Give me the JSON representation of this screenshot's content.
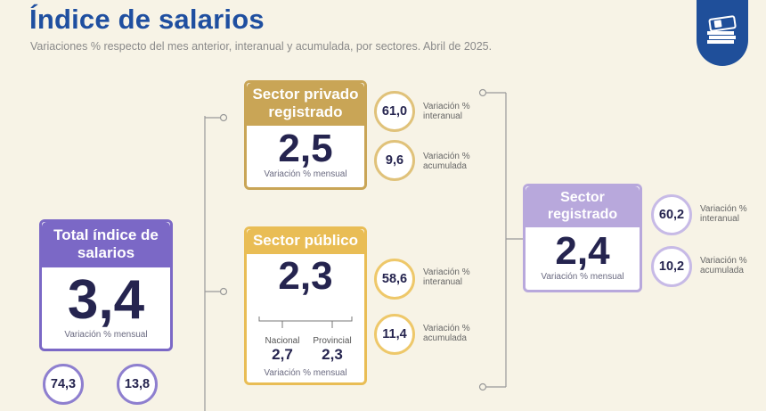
{
  "header": {
    "title": "Índice de salarios",
    "subtitle": "Variaciones % respecto del mes anterior, interanual y acumulada, por sectores. Abril de 2025."
  },
  "colors": {
    "title": "#1f4fa0",
    "total": "#7b68c6",
    "privado": "#c9a556",
    "publico": "#e9bd55",
    "registrado": "#b8a8dc",
    "badge": "#1f4f9a"
  },
  "badge_icon": "money-icon",
  "total": {
    "title": "Total índice de salarios",
    "value": "3,4",
    "caption": "Variación % mensual",
    "interanual": "74,3",
    "acumulada": "13,8"
  },
  "privado": {
    "title": "Sector privado registrado",
    "value": "2,5",
    "caption": "Variación % mensual",
    "interanual": "61,0",
    "interanual_label": "Variación % interanual",
    "acumulada": "9,6",
    "acumulada_label": "Variación % acumulada"
  },
  "publico": {
    "title": "Sector público",
    "value": "2,3",
    "caption": "Variación % mensual",
    "nacional_label": "Nacional",
    "nacional_value": "2,7",
    "provincial_label": "Provincial",
    "provincial_value": "2,3",
    "interanual": "58,6",
    "interanual_label": "Variación % interanual",
    "acumulada": "11,4",
    "acumulada_label": "Variación % acumulada"
  },
  "registrado": {
    "title": "Sector registrado",
    "value": "2,4",
    "caption": "Variación % mensual",
    "interanual": "60,2",
    "interanual_label": "Variación % interanual",
    "acumulada": "10,2",
    "acumulada_label": "Variación % acumulada"
  }
}
